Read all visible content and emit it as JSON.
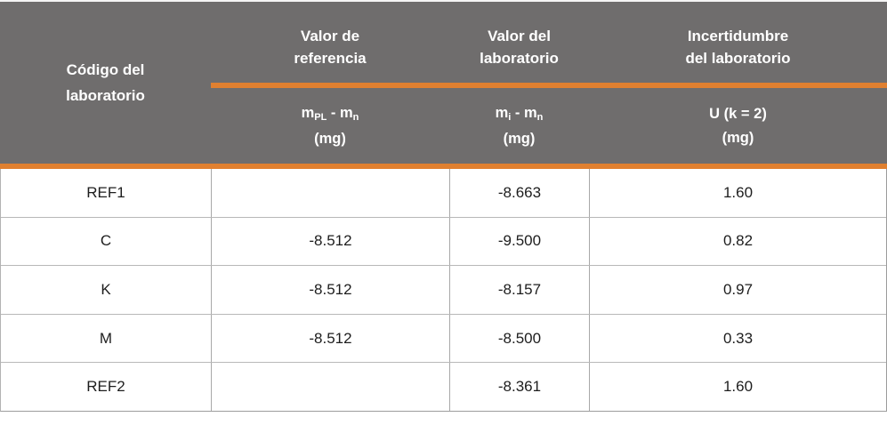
{
  "colors": {
    "accent": "#e08030",
    "header_bg": "#6f6d6d",
    "header_text": "#ffffff",
    "body_text": "#1d1d1d"
  },
  "table": {
    "columns": [
      {
        "id": "code",
        "title": [
          "Código del",
          "laboratorio"
        ]
      },
      {
        "id": "reference",
        "title": [
          "Valor de",
          "referencia"
        ],
        "symbol_parts": [
          {
            "t": "m"
          },
          {
            "t": "PL",
            "sub": true
          },
          {
            "t": " - "
          },
          {
            "t": "m"
          },
          {
            "t": "n",
            "sub": true
          }
        ],
        "unit": "(mg)"
      },
      {
        "id": "laboratory",
        "title": [
          "Valor del",
          "laboratorio"
        ],
        "symbol_parts": [
          {
            "t": "m"
          },
          {
            "t": "i",
            "sub": true
          },
          {
            "t": " - "
          },
          {
            "t": "m"
          },
          {
            "t": "n",
            "sub": true
          }
        ],
        "unit": "(mg)"
      },
      {
        "id": "uncertainty",
        "title": [
          "Incertidumbre",
          "del laboratorio"
        ],
        "symbol_parts": [
          {
            "t": "U (k = 2)"
          }
        ],
        "unit": "(mg)"
      }
    ],
    "rows": [
      {
        "code": "REF1",
        "reference": "",
        "laboratory": "-8.663",
        "uncertainty": "1.60"
      },
      {
        "code": "C",
        "reference": "-8.512",
        "laboratory": "-9.500",
        "uncertainty": "0.82"
      },
      {
        "code": "K",
        "reference": "-8.512",
        "laboratory": "-8.157",
        "uncertainty": "0.97"
      },
      {
        "code": "M",
        "reference": "-8.512",
        "laboratory": "-8.500",
        "uncertainty": "0.33"
      },
      {
        "code": "REF2",
        "reference": "",
        "laboratory": "-8.361",
        "uncertainty": "1.60"
      }
    ]
  }
}
